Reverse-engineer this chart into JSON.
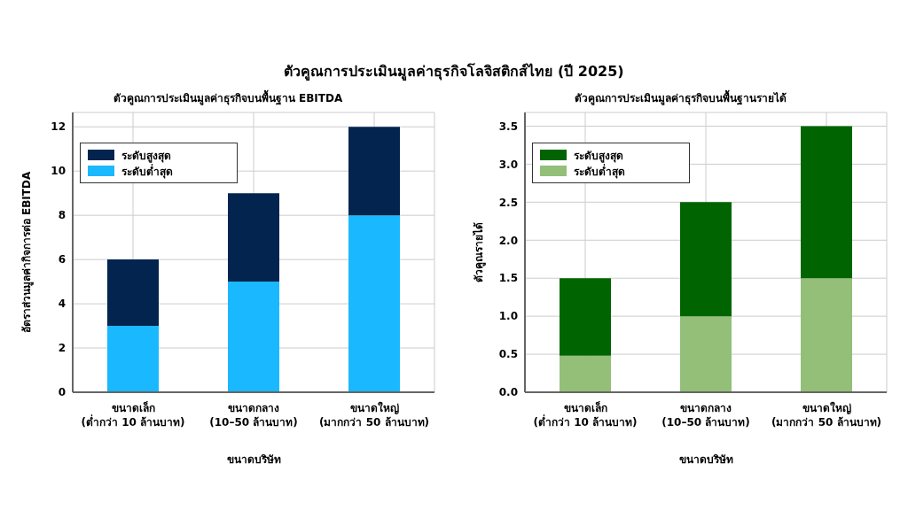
{
  "chart_data": [
    {
      "type": "bar",
      "annotations": [
        "ตัวคูณการประเมินมูลค่าธุรกิจโลจิสติกส์ไทย (ปี 2025)"
      ],
      "title": "ตัวคูณการประเมินมูลค่าธุรกิจบนพื้นฐาน EBITDA",
      "xlabel": "ขนาดบริษัท",
      "ylabel": "อัตราส่วนมูลค่ากิจการต่อ EBITDA",
      "categories": [
        "ขนาดเล็ก\n(ต่ำกว่า 10 ล้านบาท)",
        "ขนาดกลาง\n(10–50 ล้านบาท)",
        "ขนาดใหญ่\n(มากกว่า 50 ล้านบาท)"
      ],
      "stacked": true,
      "series": [
        {
          "name": "ระดับต่ำสุด",
          "color": "#1ab8ff",
          "values": [
            3,
            5,
            8
          ]
        },
        {
          "name": "ระดับสูงสุด",
          "color": "#02244f",
          "values": [
            3,
            4,
            4
          ]
        }
      ],
      "ylim": [
        0,
        12.65
      ],
      "yticks": [
        0,
        2,
        4,
        6,
        8,
        10,
        12
      ],
      "grid": true,
      "legend": "top left"
    },
    {
      "type": "bar",
      "title": "ตัวคูณการประเมินมูลค่าธุรกิจบนพื้นฐานรายได้",
      "xlabel": "ขนาดบริษัท",
      "ylabel": "ตัวคูณรายได้",
      "categories": [
        "ขนาดเล็ก\n(ต่ำกว่า 10 ล้านบาท)",
        "ขนาดกลาง\n(10–50 ล้านบาท)",
        "ขนาดใหญ่\n(มากกว่า 50 ล้านบาท)"
      ],
      "stacked": true,
      "series": [
        {
          "name": "ระดับต่ำสุด",
          "color": "#93bf78",
          "values": [
            0.48,
            1.0,
            1.5
          ]
        },
        {
          "name": "ระดับสูงสุด",
          "color": "#006400",
          "values": [
            1.02,
            1.5,
            2.0
          ]
        }
      ],
      "ylim": [
        0,
        3.68
      ],
      "yticks": [
        {
          "value": 0,
          "label": "0.0"
        },
        {
          "value": 0.5,
          "label": "0.5"
        },
        {
          "value": 1,
          "label": "1.0"
        },
        {
          "value": 1.5,
          "label": "1.5"
        },
        {
          "value": 2,
          "label": "2.0"
        },
        {
          "value": 2.5,
          "label": "2.5"
        },
        {
          "value": 3,
          "label": "3.0"
        },
        {
          "value": 3.5,
          "label": "3.5"
        }
      ],
      "grid": true,
      "legend": "top left"
    }
  ]
}
